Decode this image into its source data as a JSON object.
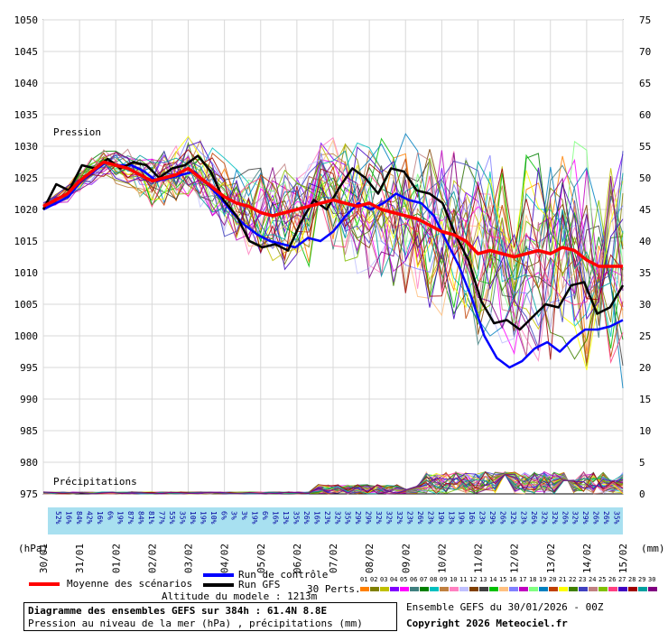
{
  "chart_data": {
    "type": "line",
    "title": "Diagramme des ensembles GEFS sur 384h : 61.4N 8.8E",
    "subtitle": "Pression au niveau de la mer (hPa) , précipitations (mm)",
    "left_axis_unit": "(hPa)",
    "right_axis_unit": "(mm)",
    "pressure_axis": {
      "min": 975,
      "max": 1050,
      "step": 5
    },
    "precip_axis": {
      "min": 0,
      "max": 75,
      "step": 5
    },
    "pressure_label": "Pression",
    "precip_label": "Précipitations",
    "x_ticks": [
      "30/01",
      "31/01",
      "01/02",
      "02/02",
      "03/02",
      "04/02",
      "05/02",
      "06/02",
      "07/02",
      "08/02",
      "09/02",
      "10/02",
      "11/02",
      "12/02",
      "13/02",
      "14/02",
      "15/02"
    ],
    "mean_series": {
      "name": "Moyenne des scénarios",
      "color": "#ff0000",
      "values": [
        1020.5,
        1021.5,
        1022.5,
        1024.5,
        1026.0,
        1027.5,
        1027.0,
        1026.5,
        1025.5,
        1024.5,
        1025.0,
        1025.5,
        1026.5,
        1025.0,
        1023.5,
        1022.0,
        1021.0,
        1020.5,
        1019.5,
        1019.0,
        1019.5,
        1020.0,
        1020.5,
        1021.0,
        1021.5,
        1021.0,
        1020.5,
        1021.0,
        1020.0,
        1019.5,
        1019.0,
        1018.5,
        1017.5,
        1016.5,
        1016.0,
        1015.0,
        1013.0,
        1013.5,
        1013.0,
        1012.5,
        1013.0,
        1013.5,
        1013.0,
        1014.0,
        1013.5,
        1012.0,
        1011.0,
        1011.0,
        1011.0
      ]
    },
    "control_series": {
      "name": "Run de contrôle",
      "color": "#0000ff",
      "values": [
        1020.0,
        1021.0,
        1022.0,
        1024.5,
        1026.0,
        1027.5,
        1027.0,
        1027.0,
        1026.0,
        1024.5,
        1025.0,
        1025.5,
        1026.0,
        1024.0,
        1022.0,
        1019.5,
        1017.5,
        1016.0,
        1015.0,
        1014.5,
        1014.0,
        1015.5,
        1015.0,
        1016.5,
        1019.0,
        1021.0,
        1020.0,
        1021.0,
        1022.5,
        1021.5,
        1021.0,
        1019.0,
        1015.0,
        1011.0,
        1006.0,
        1000.0,
        996.5,
        995.0,
        996.0,
        998.0,
        999.0,
        997.5,
        999.5,
        1001.0,
        1001.0,
        1001.5,
        1002.5
      ]
    },
    "gfs_series": {
      "name": "Run GFS",
      "color": "#000000",
      "values": [
        1020.0,
        1024.0,
        1023.0,
        1027.0,
        1026.5,
        1028.0,
        1026.5,
        1027.5,
        1027.0,
        1025.0,
        1026.5,
        1027.0,
        1028.5,
        1026.0,
        1021.5,
        1019.0,
        1015.0,
        1014.0,
        1014.5,
        1013.5,
        1018.0,
        1021.5,
        1020.0,
        1023.5,
        1026.5,
        1025.0,
        1022.5,
        1026.5,
        1026.0,
        1023.0,
        1022.5,
        1021.0,
        1016.0,
        1012.0,
        1005.5,
        1002.0,
        1002.5,
        1001.0,
        1003.0,
        1005.0,
        1004.5,
        1008.0,
        1008.5,
        1003.5,
        1004.5,
        1008.0
      ]
    },
    "perturbations_label": "30 Perts.",
    "perturbation_ids": [
      "01",
      "02",
      "03",
      "04",
      "05",
      "06",
      "07",
      "08",
      "09",
      "10",
      "11",
      "12",
      "13",
      "14",
      "15",
      "16",
      "17",
      "18",
      "19",
      "20",
      "21",
      "22",
      "23",
      "24",
      "25",
      "26",
      "27",
      "28",
      "29",
      "30"
    ],
    "perturbation_colors": [
      "#ff8000",
      "#808000",
      "#c0c000",
      "#8000ff",
      "#ff00ff",
      "#408080",
      "#008000",
      "#00c0c0",
      "#c08040",
      "#ff80c0",
      "#c0c0ff",
      "#804000",
      "#404040",
      "#00c000",
      "#ffc080",
      "#8080ff",
      "#c000c0",
      "#80ff80",
      "#0080c0",
      "#c04000",
      "#ffff00",
      "#408000",
      "#4040c0",
      "#c08080",
      "#80c000",
      "#ff4080",
      "#4000c0",
      "#a00000",
      "#00a0a0",
      "#800080"
    ],
    "precip_probabilities": [
      "52%",
      "16%",
      "84%",
      "42%",
      "16%",
      "6%",
      "19%",
      "87%",
      "84%",
      "81%",
      "77%",
      "55%",
      "35%",
      "10%",
      "19%",
      "10%",
      "6%",
      "3%",
      "3%",
      "19%",
      "6%",
      "16%",
      "13%",
      "35%",
      "26%",
      "16%",
      "23%",
      "32%",
      "35%",
      "29%",
      "29%",
      "32%",
      "32%",
      "32%",
      "23%",
      "26%",
      "23%",
      "19%",
      "13%",
      "19%",
      "16%",
      "23%",
      "29%",
      "26%",
      "32%",
      "23%",
      "26%",
      "32%",
      "32%",
      "26%",
      "32%",
      "29%",
      "26%",
      "26%",
      "35%"
    ],
    "altitude_label": "Altitude du modele : 1213m",
    "ensemble_label": "Ensemble GEFS du 30/01/2026 - 00Z",
    "copyright": "Copyright 2026 Meteociel.fr",
    "grid": true
  }
}
